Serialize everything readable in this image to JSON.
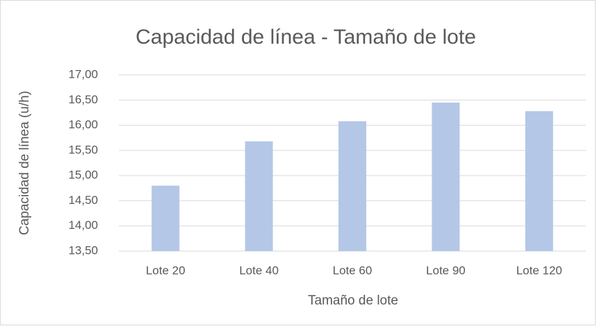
{
  "chart_data": {
    "type": "bar",
    "title": "Capacidad de línea - Tamaño de lote",
    "categories": [
      "Lote 20",
      "Lote 40",
      "Lote 60",
      "Lote 90",
      "Lote 120"
    ],
    "values": [
      14.8,
      15.68,
      16.08,
      16.45,
      16.28
    ],
    "color": "#b4c7e7",
    "x_label": "Tamaño de lote",
    "y_label": "Capacidad de línea (u/h)",
    "ylim": [
      13.5,
      17
    ],
    "yticks": [
      {
        "value": 13.5,
        "label": "13,50"
      },
      {
        "value": 14,
        "label": "14,00"
      },
      {
        "value": 14.5,
        "label": "14,50"
      },
      {
        "value": 15,
        "label": "15,00"
      },
      {
        "value": 15.5,
        "label": "15,50"
      },
      {
        "value": 16,
        "label": "16,00"
      },
      {
        "value": 16.5,
        "label": "16,50"
      },
      {
        "value": 17,
        "label": "17,00"
      }
    ],
    "grid": true
  }
}
